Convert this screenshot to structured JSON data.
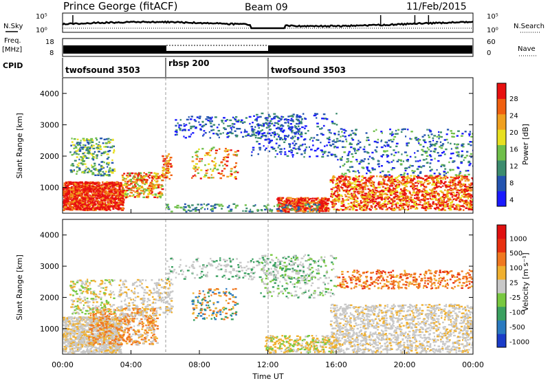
{
  "header": {
    "station": "Prince George (fitACF)",
    "beam": "Beam 09",
    "date": "11/Feb/2015"
  },
  "side_labels": {
    "nsky": "N.Sky",
    "freq": "Freq.",
    "freq_unit": "[MHz]",
    "cpid": "CPID",
    "nsearch": "N.Search",
    "nave": "Nave"
  },
  "noise_panel": {
    "left_ticks": [
      "10^5",
      "10^0"
    ],
    "right_ticks": [
      "10^5",
      "10^0"
    ]
  },
  "freq_panel": {
    "left_ticks": [
      "18",
      "8"
    ],
    "right_ticks": [
      "60",
      "0"
    ]
  },
  "cpid_segments": [
    {
      "label": "twofsound 3503",
      "start_hour": 0,
      "end_hour": 6
    },
    {
      "label": "rbsp 200",
      "start_hour": 6,
      "end_hour": 12
    },
    {
      "label": "twofsound 3503",
      "start_hour": 12,
      "end_hour": 24
    }
  ],
  "xaxis": {
    "label": "Time UT",
    "ticks": [
      "00:00",
      "04:00",
      "08:00",
      "12:00",
      "16:00",
      "20:00",
      "00:00"
    ]
  },
  "chart_data": [
    {
      "type": "heatmap",
      "title": "",
      "xlabel": "Time UT",
      "ylabel": "Slant Range [km]",
      "x_range_hours": [
        0,
        24
      ],
      "ylim": [
        180,
        4500
      ],
      "yticks": [
        "1000",
        "2000",
        "3000",
        "4000"
      ],
      "colorbar_label": "Power [dB]",
      "colorbar_ticks": [
        "28",
        "24",
        "20",
        "16",
        "12",
        "8",
        "4"
      ],
      "colors": [
        "#1a1aff",
        "#2454b0",
        "#3c8c6e",
        "#6fbf4a",
        "#e8e020",
        "#f0a020",
        "#f06010",
        "#e81010"
      ]
    },
    {
      "type": "heatmap",
      "title": "",
      "xlabel": "Time UT",
      "ylabel": "Slant Range [km]",
      "x_range_hours": [
        0,
        24
      ],
      "ylim": [
        180,
        4500
      ],
      "yticks": [
        "1000",
        "2000",
        "3000",
        "4000"
      ],
      "colorbar_label": "Velocity [m s^-1]",
      "colorbar_ticks": [
        "1000",
        "500",
        "100",
        "25",
        "-25",
        "-100",
        "-500",
        "-1000"
      ],
      "colors": [
        "#1a3cc8",
        "#2a7ac0",
        "#3aa060",
        "#78c840",
        "#c8c8c8",
        "#f0b030",
        "#f07820",
        "#e83010",
        "#e01010"
      ]
    }
  ]
}
